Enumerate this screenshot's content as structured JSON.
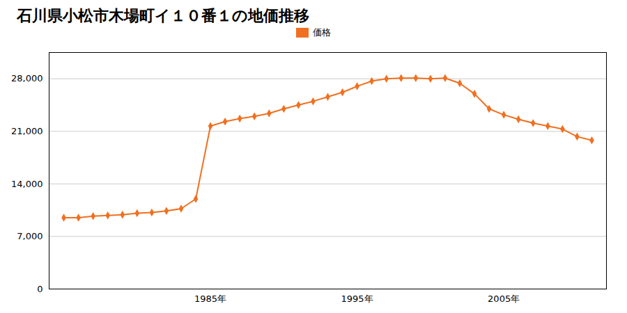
{
  "chart_data": {
    "type": "line",
    "title": "石川県小松市木場町イ１０番１の地価推移",
    "x": [
      1975,
      1976,
      1977,
      1978,
      1979,
      1980,
      1981,
      1982,
      1983,
      1984,
      1985,
      1986,
      1987,
      1988,
      1989,
      1990,
      1991,
      1992,
      1993,
      1994,
      1995,
      1996,
      1997,
      1998,
      1999,
      2000,
      2001,
      2002,
      2003,
      2004,
      2005,
      2006,
      2007,
      2008,
      2009,
      2010,
      2011
    ],
    "series": [
      {
        "name": "価格",
        "color": "#f07020",
        "marker": "diamond",
        "values": [
          9500,
          9500,
          9700,
          9800,
          9900,
          10100,
          10200,
          10400,
          10700,
          12000,
          21700,
          22300,
          22700,
          23000,
          23400,
          24000,
          24500,
          25000,
          25600,
          26200,
          27000,
          27700,
          28000,
          28100,
          28100,
          28000,
          28100,
          27400,
          26000,
          24000,
          23200,
          22600,
          22100,
          21700,
          21300,
          20300,
          19800
        ]
      }
    ],
    "xlim": [
      1974,
      2012
    ],
    "xticks": [
      {
        "value": 1985,
        "label": "1985年"
      },
      {
        "value": 1995,
        "label": "1995年"
      },
      {
        "value": 2005,
        "label": "2005年"
      }
    ],
    "ylim": [
      0,
      31500
    ],
    "yticks": [
      0,
      {
        "value": 7000,
        "label": "7,000"
      },
      {
        "value": 14000,
        "label": "14,000"
      },
      {
        "value": 21000,
        "label": "21,000"
      },
      {
        "value": 28000,
        "label": "28,000"
      }
    ],
    "grid": "y",
    "legend": "top"
  }
}
